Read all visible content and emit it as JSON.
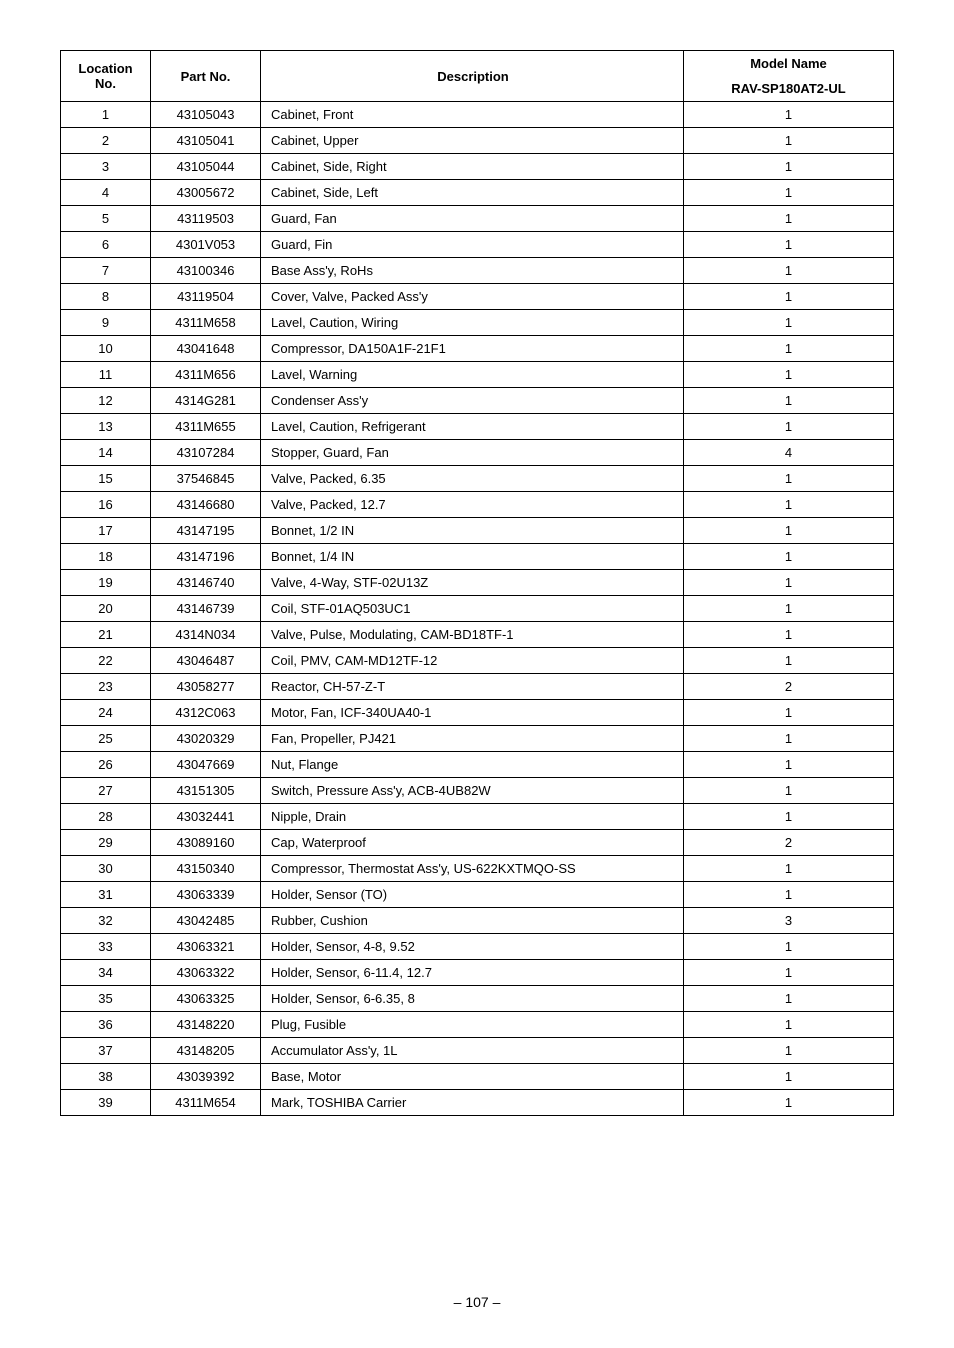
{
  "table": {
    "header": {
      "location": "Location No.",
      "part": "Part No.",
      "description": "Description",
      "model_name": "Model Name",
      "model_value": "RAV-SP180AT2-UL"
    },
    "rows": [
      {
        "loc": "1",
        "part": "43105043",
        "desc": "Cabinet, Front",
        "qty": "1"
      },
      {
        "loc": "2",
        "part": "43105041",
        "desc": "Cabinet, Upper",
        "qty": "1"
      },
      {
        "loc": "3",
        "part": "43105044",
        "desc": "Cabinet, Side, Right",
        "qty": "1"
      },
      {
        "loc": "4",
        "part": "43005672",
        "desc": "Cabinet, Side, Left",
        "qty": "1"
      },
      {
        "loc": "5",
        "part": "43119503",
        "desc": "Guard, Fan",
        "qty": "1"
      },
      {
        "loc": "6",
        "part": "4301V053",
        "desc": "Guard, Fin",
        "qty": "1"
      },
      {
        "loc": "7",
        "part": "43100346",
        "desc": "Base Ass'y, RoHs",
        "qty": "1"
      },
      {
        "loc": "8",
        "part": "43119504",
        "desc": "Cover, Valve, Packed Ass'y",
        "qty": "1"
      },
      {
        "loc": "9",
        "part": "4311M658",
        "desc": "Lavel, Caution, Wiring",
        "qty": "1"
      },
      {
        "loc": "10",
        "part": "43041648",
        "desc": "Compressor, DA150A1F-21F1",
        "qty": "1"
      },
      {
        "loc": "11",
        "part": "4311M656",
        "desc": "Lavel, Warning",
        "qty": "1"
      },
      {
        "loc": "12",
        "part": "4314G281",
        "desc": "Condenser Ass'y",
        "qty": "1"
      },
      {
        "loc": "13",
        "part": "4311M655",
        "desc": "Lavel, Caution, Refrigerant",
        "qty": "1"
      },
      {
        "loc": "14",
        "part": "43107284",
        "desc": "Stopper, Guard, Fan",
        "qty": "4"
      },
      {
        "loc": "15",
        "part": "37546845",
        "desc": "Valve, Packed, 6.35",
        "qty": "1"
      },
      {
        "loc": "16",
        "part": "43146680",
        "desc": "Valve, Packed, 12.7",
        "qty": "1"
      },
      {
        "loc": "17",
        "part": "43147195",
        "desc": "Bonnet, 1/2 IN",
        "qty": "1"
      },
      {
        "loc": "18",
        "part": "43147196",
        "desc": "Bonnet, 1/4 IN",
        "qty": "1"
      },
      {
        "loc": "19",
        "part": "43146740",
        "desc": "Valve, 4-Way, STF-02U13Z",
        "qty": "1"
      },
      {
        "loc": "20",
        "part": "43146739",
        "desc": "Coil, STF-01AQ503UC1",
        "qty": "1"
      },
      {
        "loc": "21",
        "part": "4314N034",
        "desc": "Valve, Pulse, Modulating, CAM-BD18TF-1",
        "qty": "1"
      },
      {
        "loc": "22",
        "part": "43046487",
        "desc": "Coil, PMV, CAM-MD12TF-12",
        "qty": "1"
      },
      {
        "loc": "23",
        "part": "43058277",
        "desc": "Reactor, CH-57-Z-T",
        "qty": "2"
      },
      {
        "loc": "24",
        "part": "4312C063",
        "desc": "Motor, Fan, ICF-340UA40-1",
        "qty": "1"
      },
      {
        "loc": "25",
        "part": "43020329",
        "desc": "Fan, Propeller, PJ421",
        "qty": "1"
      },
      {
        "loc": "26",
        "part": "43047669",
        "desc": "Nut, Flange",
        "qty": "1"
      },
      {
        "loc": "27",
        "part": "43151305",
        "desc": "Switch, Pressure Ass'y, ACB-4UB82W",
        "qty": "1"
      },
      {
        "loc": "28",
        "part": "43032441",
        "desc": "Nipple, Drain",
        "qty": "1"
      },
      {
        "loc": "29",
        "part": "43089160",
        "desc": "Cap, Waterproof",
        "qty": "2"
      },
      {
        "loc": "30",
        "part": "43150340",
        "desc": "Compressor, Thermostat Ass'y, US-622KXTMQO-SS",
        "qty": "1"
      },
      {
        "loc": "31",
        "part": "43063339",
        "desc": "Holder, Sensor (TO)",
        "qty": "1"
      },
      {
        "loc": "32",
        "part": "43042485",
        "desc": "Rubber, Cushion",
        "qty": "3"
      },
      {
        "loc": "33",
        "part": "43063321",
        "desc": "Holder, Sensor, 4-8, 9.52",
        "qty": "1"
      },
      {
        "loc": "34",
        "part": "43063322",
        "desc": "Holder, Sensor, 6-11.4, 12.7",
        "qty": "1"
      },
      {
        "loc": "35",
        "part": "43063325",
        "desc": "Holder, Sensor, 6-6.35, 8",
        "qty": "1"
      },
      {
        "loc": "36",
        "part": "43148220",
        "desc": "Plug, Fusible",
        "qty": "1"
      },
      {
        "loc": "37",
        "part": "43148205",
        "desc": "Accumulator Ass'y, 1L",
        "qty": "1"
      },
      {
        "loc": "38",
        "part": "43039392",
        "desc": "Base, Motor",
        "qty": "1"
      },
      {
        "loc": "39",
        "part": "4311M654",
        "desc": "Mark, TOSHIBA Carrier",
        "qty": "1"
      }
    ]
  },
  "page_number": "– 107 –"
}
